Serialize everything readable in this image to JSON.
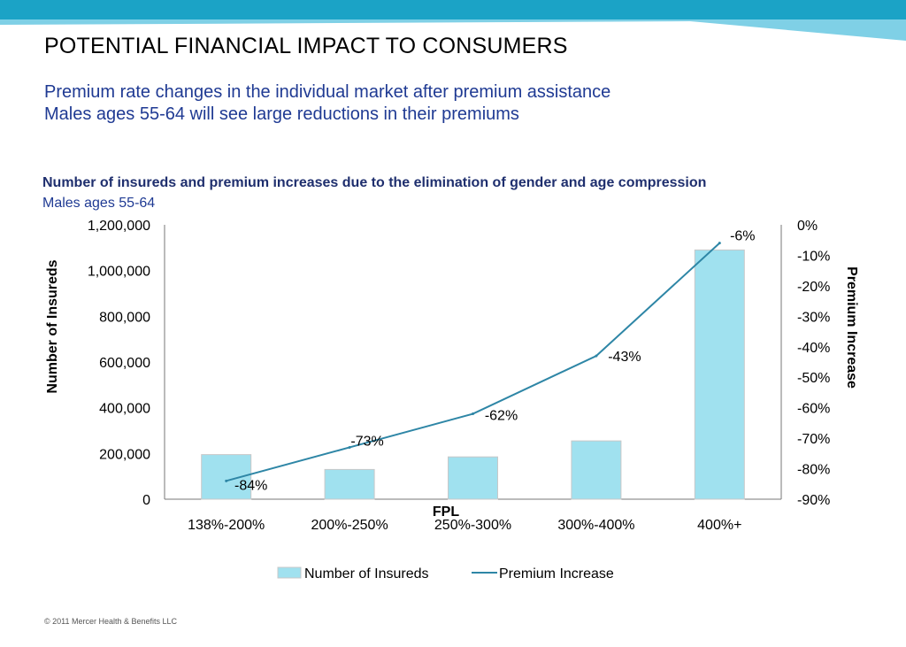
{
  "header": {
    "title": "POTENTIAL FINANCIAL IMPACT TO CONSUMERS",
    "subtitle_line1": "Premium rate changes in the individual market after premium assistance",
    "subtitle_line2": "Males ages 55-64 will see large reductions in their premiums"
  },
  "footer": {
    "copyright": "© 2011 Mercer Health & Benefits LLC"
  },
  "colors": {
    "bar": "#a0e1ef",
    "line": "#2e86a6",
    "band_dark": "#1ba3c6",
    "band_light": "#7fd0e6",
    "title_blue": "#1f3a93"
  },
  "chart_data": {
    "type": "bar",
    "title": "Number of insureds and premium increases due to the elimination of gender and age compression",
    "subtitle": "Males ages 55-64",
    "xlabel": "FPL",
    "ylabel": "Number of Insureds",
    "y2label": "Premium Increase",
    "categories": [
      "138%-200%",
      "200%-250%",
      "250%-300%",
      "300%-400%",
      "400%+"
    ],
    "ylim": [
      0,
      1200000
    ],
    "yticks": [
      "0",
      "200,000",
      "400,000",
      "600,000",
      "800,000",
      "1,000,000",
      "1,200,000"
    ],
    "y2lim": [
      -0.9,
      0
    ],
    "y2ticks": [
      "0%",
      "-10%",
      "-20%",
      "-30%",
      "-40%",
      "-50%",
      "-60%",
      "-70%",
      "-80%",
      "-90%"
    ],
    "series": [
      {
        "name": "Number of Insureds",
        "kind": "bar",
        "axis": "left",
        "values": [
          195000,
          130000,
          185000,
          255000,
          1090000
        ]
      },
      {
        "name": "Premium Increase",
        "kind": "line",
        "axis": "right",
        "values": [
          -0.84,
          -0.73,
          -0.62,
          -0.43,
          -0.06
        ],
        "labels": [
          "-84%",
          "-73%",
          "-62%",
          "-43%",
          "-6%"
        ]
      }
    ],
    "legend_position": "bottom",
    "grid": false
  }
}
